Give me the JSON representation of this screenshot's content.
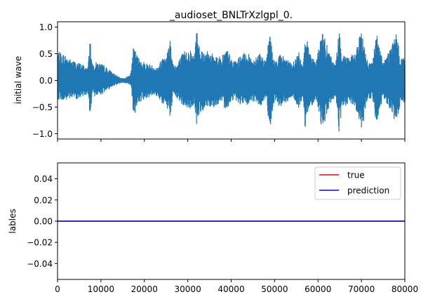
{
  "chart_data": [
    {
      "type": "line",
      "title": "_audioset_BNLTrXzlgpl_0.",
      "xlabel": "",
      "ylabel": "initial wave",
      "xlim": [
        0,
        80000
      ],
      "ylim": [
        -1.1,
        1.1
      ],
      "yticks": [
        1.0,
        0.5,
        0.0,
        -0.5,
        -1.0
      ],
      "ytick_labels": [
        "1.0",
        "0.5",
        "0.0",
        "−0.5",
        "−1.0"
      ],
      "xticks": [
        0,
        10000,
        20000,
        30000,
        40000,
        50000,
        60000,
        70000,
        80000
      ],
      "xtick_labels_shown": false,
      "grid": false,
      "series": [
        {
          "color": "#1f77b4",
          "envelope": {
            "x": [
              0,
              1500,
              3000,
              4500,
              6000,
              7000,
              7500,
              8000,
              9000,
              10500,
              12000,
              13500,
              14500,
              15500,
              16500,
              17000,
              17500,
              18500,
              20000,
              21500,
              23000,
              24500,
              25500,
              26000,
              26500,
              27500,
              29000,
              30500,
              31500,
              32000,
              33000,
              34500,
              36000,
              37500,
              39000,
              40500,
              42000,
              43500,
              45000,
              46500,
              48000,
              49000,
              49500,
              50000,
              51000,
              52500,
              54000,
              55500,
              56500,
              57000,
              58000,
              59500,
              61000,
              62500,
              64000,
              64800,
              65500,
              67000,
              68500,
              70000,
              71500,
              72500,
              73500,
              75000,
              76500,
              78000,
              79000,
              80000
            ],
            "upper": [
              0.55,
              0.5,
              0.4,
              0.35,
              0.3,
              0.25,
              0.85,
              0.3,
              0.35,
              0.3,
              0.2,
              0.1,
              0.05,
              0.05,
              0.1,
              0.2,
              0.65,
              0.45,
              0.35,
              0.3,
              0.25,
              0.5,
              0.6,
              0.85,
              0.35,
              0.3,
              0.55,
              0.6,
              0.45,
              1.0,
              0.6,
              0.55,
              0.5,
              0.45,
              0.6,
              0.35,
              0.45,
              0.55,
              0.4,
              0.55,
              0.35,
              1.0,
              0.5,
              0.35,
              0.5,
              0.45,
              0.3,
              0.55,
              0.3,
              0.9,
              0.6,
              0.35,
              0.95,
              0.55,
              0.3,
              0.95,
              0.55,
              0.45,
              0.5,
              0.95,
              0.35,
              0.35,
              0.9,
              0.35,
              0.6,
              0.9,
              0.45,
              0.45
            ],
            "lower": [
              -0.35,
              -0.4,
              -0.35,
              -0.35,
              -0.3,
              -0.25,
              -0.78,
              -0.3,
              -0.3,
              -0.25,
              -0.15,
              -0.08,
              -0.05,
              -0.05,
              -0.08,
              -0.18,
              -0.7,
              -0.45,
              -0.35,
              -0.3,
              -0.3,
              -0.5,
              -0.55,
              -0.8,
              -0.3,
              -0.35,
              -0.5,
              -0.55,
              -0.45,
              -0.85,
              -0.6,
              -0.5,
              -0.5,
              -0.45,
              -0.55,
              -0.35,
              -0.45,
              -0.5,
              -0.4,
              -0.5,
              -0.35,
              -1.0,
              -0.55,
              -0.35,
              -0.5,
              -0.45,
              -0.3,
              -0.55,
              -0.3,
              -0.9,
              -0.55,
              -0.35,
              -0.95,
              -0.5,
              -0.3,
              -1.0,
              -0.55,
              -0.45,
              -0.5,
              -0.95,
              -0.35,
              -0.35,
              -0.85,
              -0.35,
              -0.55,
              -0.85,
              -0.45,
              -0.45
            ]
          }
        }
      ]
    },
    {
      "type": "line",
      "title": "",
      "xlabel": "",
      "ylabel": "lables",
      "xlim": [
        0,
        80000
      ],
      "ylim": [
        -0.055,
        0.055
      ],
      "yticks": [
        0.04,
        0.02,
        0.0,
        -0.02,
        -0.04
      ],
      "ytick_labels": [
        "0.04",
        "0.02",
        "0.00",
        "−0.02",
        "−0.04"
      ],
      "xticks": [
        0,
        10000,
        20000,
        30000,
        40000,
        50000,
        60000,
        70000,
        80000
      ],
      "xtick_labels": [
        "0",
        "10000",
        "20000",
        "30000",
        "40000",
        "50000",
        "60000",
        "70000",
        "80000"
      ],
      "grid": false,
      "legend_position": "upper right",
      "series": [
        {
          "name": "true",
          "color": "#ff0000",
          "x": [
            0,
            80000
          ],
          "values": [
            0,
            0
          ]
        },
        {
          "name": "prediction",
          "color": "#0000ff",
          "x": [
            0,
            80000
          ],
          "values": [
            0,
            0
          ]
        }
      ]
    }
  ]
}
